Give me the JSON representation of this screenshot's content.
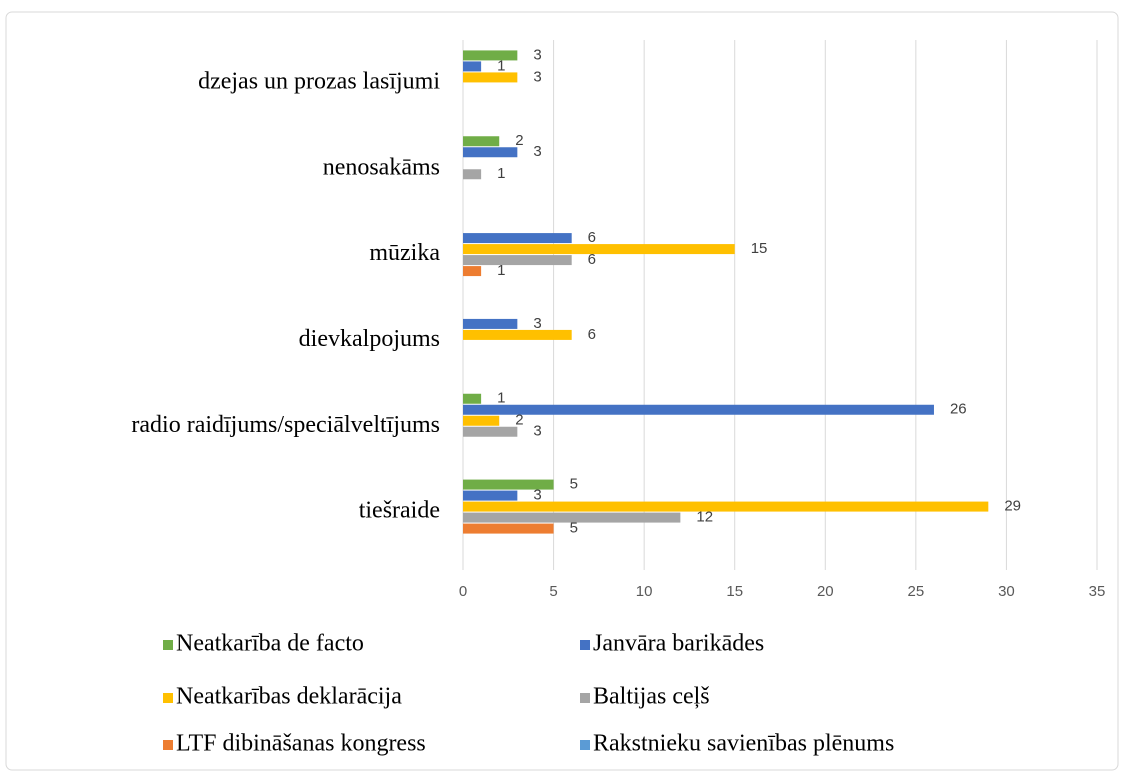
{
  "chart_data": {
    "type": "hbar",
    "categories": [
      "dzejas un prozas lasījumi",
      "nenosakāms",
      "mūzika",
      "dievkalpojums",
      "radio raidījums/speciālveltījums",
      "tiešraide"
    ],
    "series": [
      {
        "name": "Neatkarība de facto",
        "color": "#70ad47",
        "values": [
          3,
          2,
          null,
          null,
          1,
          5
        ]
      },
      {
        "name": "Janvāra barikādes",
        "color": "#4472c4",
        "values": [
          1,
          3,
          6,
          3,
          26,
          3
        ]
      },
      {
        "name": "Neatkarības deklarācija",
        "color": "#ffc000",
        "values": [
          3,
          null,
          15,
          6,
          2,
          29
        ]
      },
      {
        "name": "Baltijas ceļš",
        "color": "#a5a5a5",
        "values": [
          null,
          1,
          6,
          null,
          3,
          12
        ]
      },
      {
        "name": "LTF dibināšanas kongress",
        "color": "#ed7d31",
        "values": [
          null,
          null,
          1,
          null,
          null,
          5
        ]
      },
      {
        "name": "Rakstnieku savienības plēnums",
        "color": "#5b9bd5",
        "values": [
          null,
          null,
          null,
          null,
          null,
          null
        ]
      }
    ],
    "xlim": [
      0,
      35
    ],
    "xticks": [
      0,
      5,
      10,
      15,
      20,
      25,
      30,
      35
    ],
    "grid": true,
    "legend": "bottom"
  }
}
